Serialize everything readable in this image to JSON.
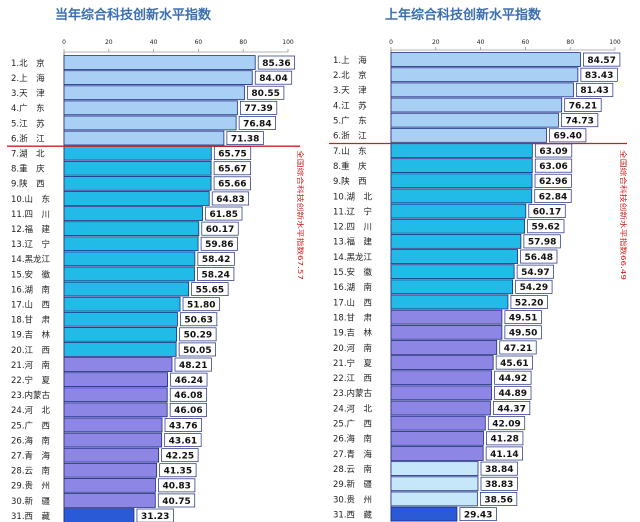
{
  "colors": {
    "group_top": "#a8d0f4",
    "group_mid": "#22bbe8",
    "group_low": "#8e86e4",
    "light": "#c6e6fa",
    "weak": "#2a5ad6",
    "bar_border": "#1a2a80",
    "divider": "#cc2020",
    "title": "#3a6fb0"
  },
  "chart_data": [
    {
      "type": "bar",
      "orientation": "horizontal",
      "title": "当年综合科技创新水平指数",
      "xlim": [
        0,
        100
      ],
      "x_ticks": [
        "0",
        "20",
        "40",
        "60",
        "80",
        "100"
      ],
      "side_note": "全国综合科技创新水平指数67.57",
      "categories": [
        "1.北　京",
        "2.上　海",
        "3.天　津",
        "4.广　东",
        "5.江　苏",
        "6.浙　江",
        "7.湖　北",
        "8.重　庆",
        "9.陕　西",
        "10.山　东",
        "11.四　川",
        "12.福　建",
        "13.辽　宁",
        "14.黑龙江",
        "15.安　徽",
        "16.湖　南",
        "17.山　西",
        "18.甘　肃",
        "19.吉　林",
        "20.江　西",
        "21.河　南",
        "22.宁　夏",
        "23.内蒙古",
        "24.河　北",
        "25.广　西",
        "26.海　南",
        "27.青　海",
        "28.云　南",
        "29.贵　州",
        "30.新　疆",
        "31.西　藏"
      ],
      "values": [
        85.36,
        84.04,
        80.55,
        77.39,
        76.84,
        71.38,
        65.75,
        65.67,
        65.66,
        64.83,
        61.85,
        60.17,
        59.86,
        58.42,
        58.24,
        55.65,
        51.8,
        50.63,
        50.29,
        50.05,
        48.21,
        46.24,
        46.08,
        46.06,
        43.76,
        43.61,
        42.25,
        41.35,
        40.83,
        40.75,
        31.23
      ],
      "value_labels": [
        "85.36",
        "84.04",
        "80.55",
        "77.39",
        "76.84",
        "71.38",
        "65.75",
        "65.67",
        "65.66",
        "64.83",
        "61.85",
        "60.17",
        "59.86",
        "58.42",
        "58.24",
        "55.65",
        "51.80",
        "50.63",
        "50.29",
        "50.05",
        "48.21",
        "46.24",
        "46.08",
        "46.06",
        "43.76",
        "43.61",
        "42.25",
        "41.35",
        "40.83",
        "40.75",
        "31.23"
      ],
      "bar_colors": [
        "group_top",
        "group_top",
        "group_top",
        "group_top",
        "group_top",
        "group_top",
        "group_mid",
        "group_mid",
        "group_mid",
        "group_mid",
        "group_mid",
        "group_mid",
        "group_mid",
        "group_mid",
        "group_mid",
        "group_mid",
        "group_mid",
        "group_mid",
        "group_mid",
        "group_mid",
        "group_low",
        "group_low",
        "group_low",
        "group_low",
        "group_low",
        "group_low",
        "group_low",
        "group_low",
        "group_low",
        "group_low",
        "weak"
      ],
      "divider_after_index": 5,
      "grid": false
    },
    {
      "type": "bar",
      "orientation": "horizontal",
      "title": "上年综合科技创新水平指数",
      "xlim": [
        0,
        100
      ],
      "x_ticks": [
        "0",
        "20",
        "40",
        "60",
        "80",
        "100"
      ],
      "side_note": "全国综合科技创新水平指数66.49",
      "categories": [
        "1.上　海",
        "2.北　京",
        "3.天　津",
        "4.江　苏",
        "5.广　东",
        "6.浙　江",
        "7.山　东",
        "8.重　庆",
        "9.陕　西",
        "10.湖　北",
        "11.辽　宁",
        "12.四　川",
        "13.福　建",
        "14.黑龙江",
        "15.安　徽",
        "16.湖　南",
        "17.山　西",
        "18.甘　肃",
        "19.吉　林",
        "20.河　南",
        "21.宁　夏",
        "22.江　西",
        "23.内蒙古",
        "24.河　北",
        "25.广　西",
        "26.海　南",
        "27.青　海",
        "28.云　南",
        "29.新　疆",
        "30.贵　州",
        "31.西　藏"
      ],
      "values": [
        84.57,
        83.43,
        81.43,
        76.21,
        74.73,
        69.4,
        63.09,
        63.06,
        62.96,
        62.84,
        60.17,
        59.62,
        57.98,
        56.48,
        54.97,
        54.29,
        52.2,
        49.51,
        49.5,
        47.21,
        45.61,
        44.92,
        44.89,
        44.37,
        42.09,
        41.28,
        41.14,
        38.84,
        38.83,
        38.56,
        29.43
      ],
      "value_labels": [
        "84.57",
        "83.43",
        "81.43",
        "76.21",
        "74.73",
        "69.40",
        "63.09",
        "63.06",
        "62.96",
        "62.84",
        "60.17",
        "59.62",
        "57.98",
        "56.48",
        "54.97",
        "54.29",
        "52.20",
        "49.51",
        "49.50",
        "47.21",
        "45.61",
        "44.92",
        "44.89",
        "44.37",
        "42.09",
        "41.28",
        "41.14",
        "38.84",
        "38.83",
        "38.56",
        "29.43"
      ],
      "bar_colors": [
        "group_top",
        "group_top",
        "group_top",
        "group_top",
        "group_top",
        "group_top",
        "group_mid",
        "group_mid",
        "group_mid",
        "group_mid",
        "group_mid",
        "group_mid",
        "group_mid",
        "group_mid",
        "group_mid",
        "group_mid",
        "group_mid",
        "group_low",
        "group_low",
        "group_low",
        "group_low",
        "group_low",
        "group_low",
        "group_low",
        "group_low",
        "group_low",
        "group_low",
        "light",
        "light",
        "light",
        "weak"
      ],
      "divider_after_index": 5,
      "grid": false
    }
  ]
}
